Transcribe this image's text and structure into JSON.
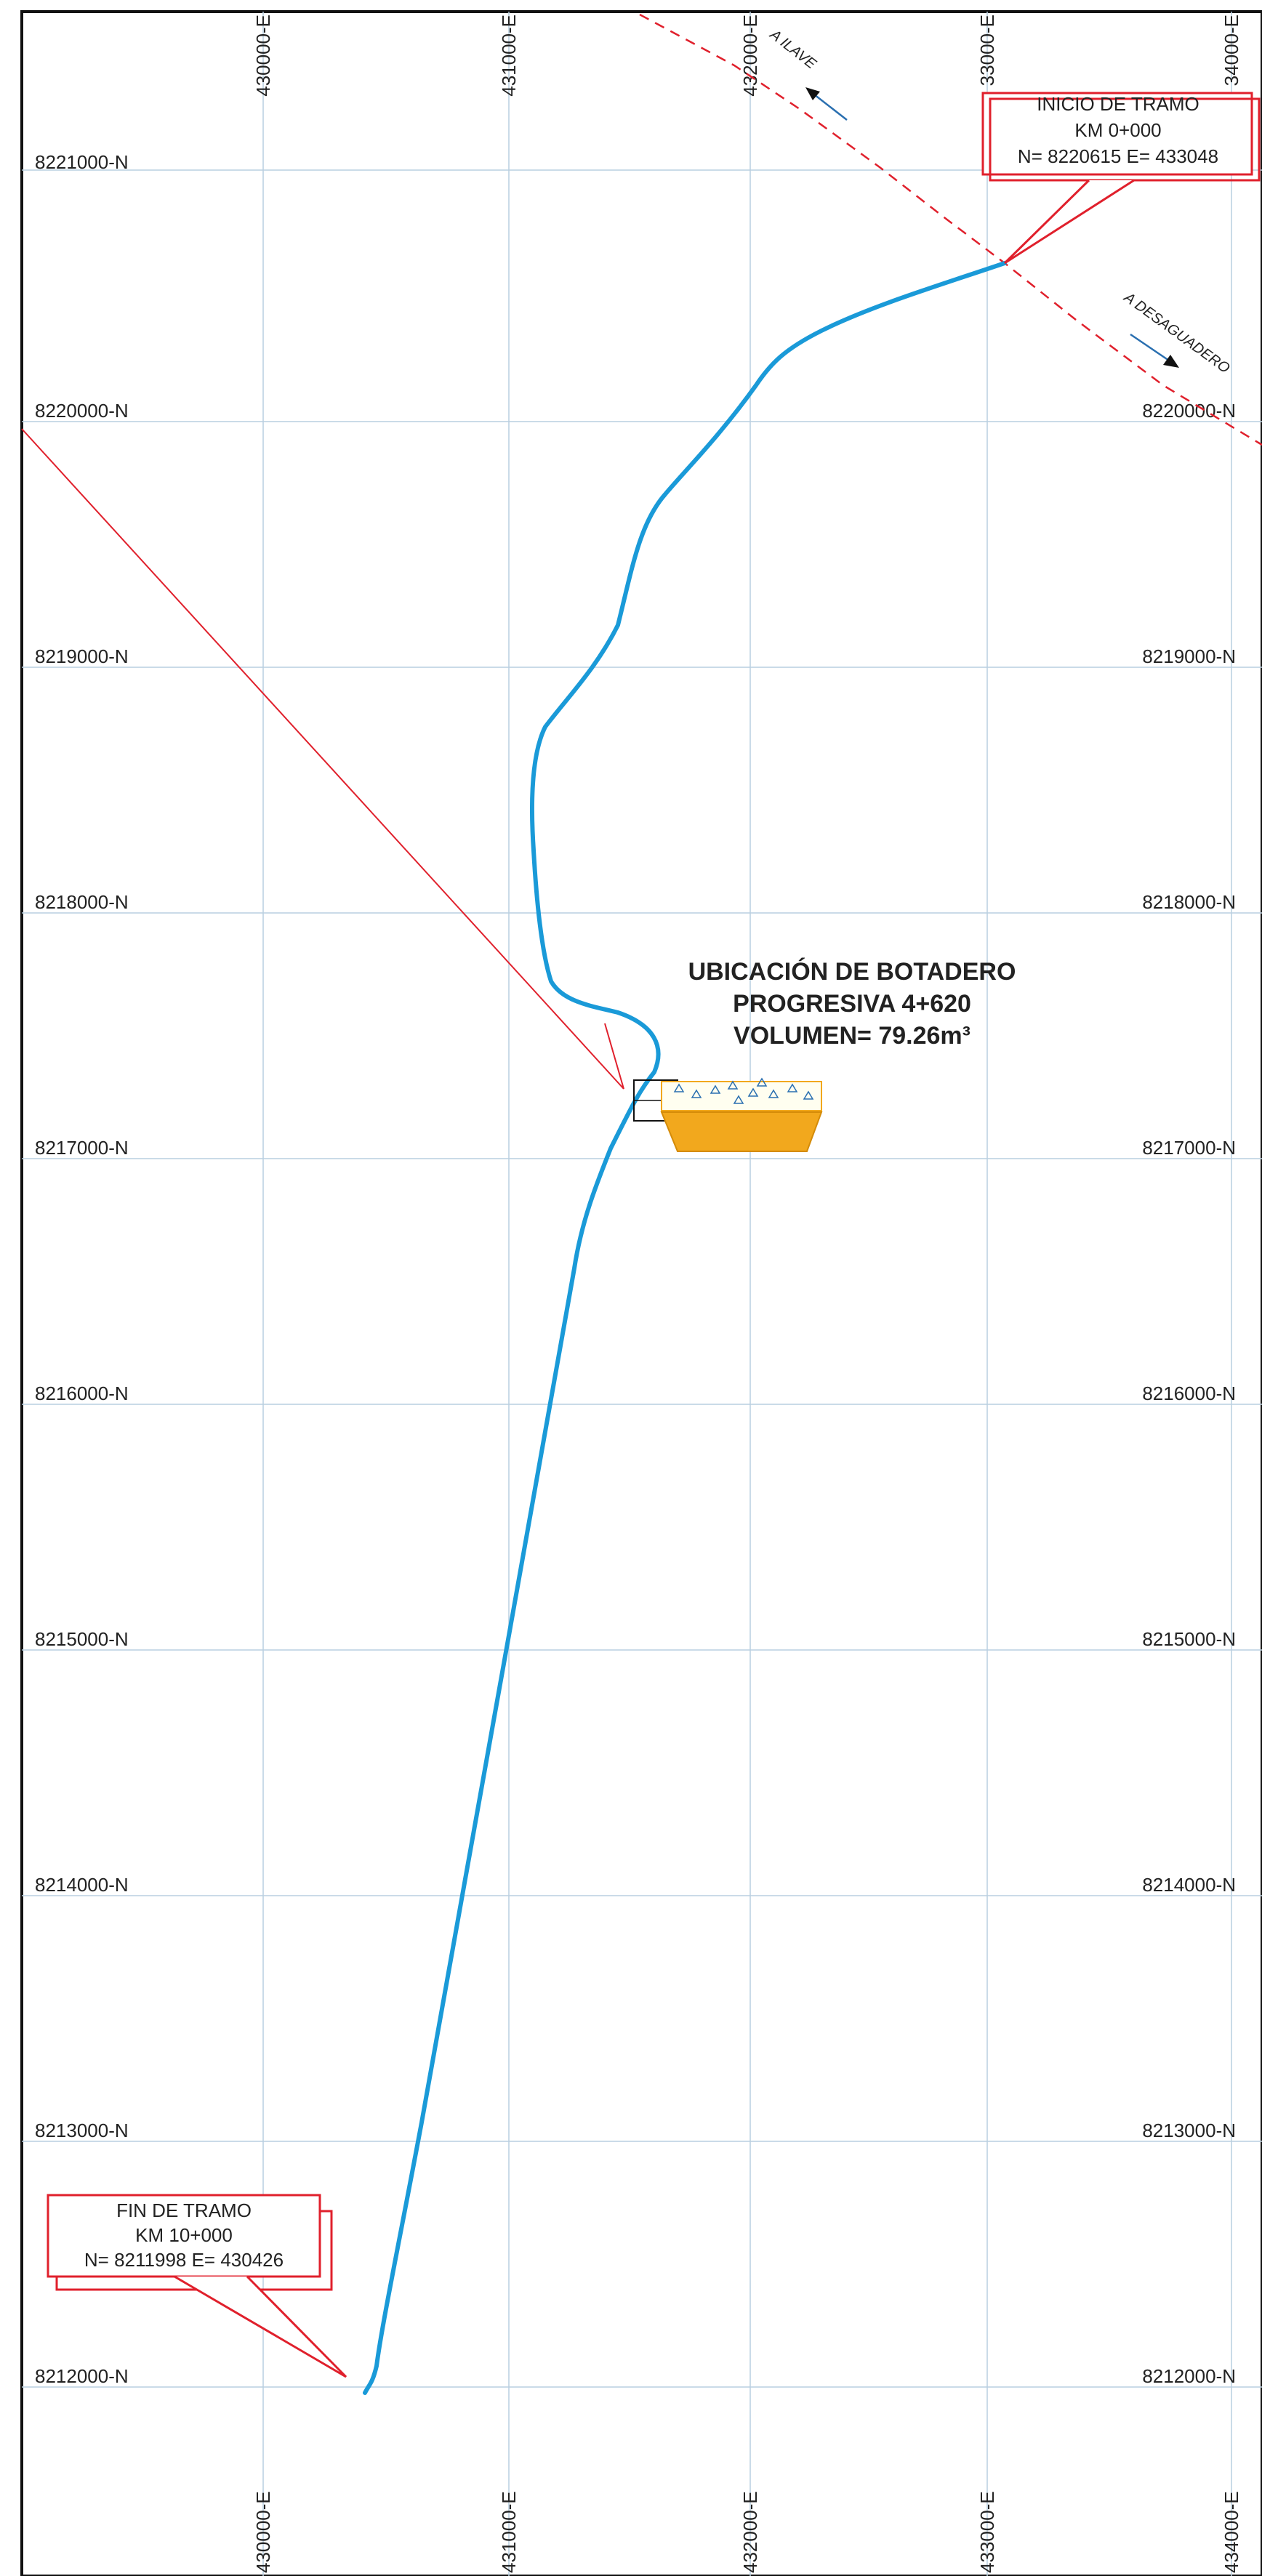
{
  "grid": {
    "northings": [
      "8221000-N",
      "8220000-N",
      "8219000-N",
      "8218000-N",
      "8217000-N",
      "8216000-N",
      "8215000-N",
      "8214000-N",
      "8213000-N",
      "8212000-N"
    ],
    "northings_right": [
      "8220000-N",
      "8219000-N",
      "8218000-N",
      "8217000-N",
      "8216000-N",
      "8215000-N",
      "8214000-N",
      "8213000-N",
      "8212000-N"
    ],
    "eastings_top": [
      "430000-E",
      "431000-E",
      "432000-E",
      "33000-E",
      "34000-E"
    ],
    "eastings_bottom": [
      "430000-E",
      "431000-E",
      "432000-E",
      "433000-E",
      "434000-E"
    ]
  },
  "roads": {
    "to_ilave": "A ILAVE",
    "to_desaguadero": "A DESAGUADERO"
  },
  "start_box": {
    "title": "INICIO DE TRAMO",
    "km": "KM 0+000",
    "coords": "N= 8220615   E=  433048"
  },
  "end_box": {
    "title": "FIN DE TRAMO",
    "km": "KM 10+000",
    "coords": "N= 8211998   E=  430426"
  },
  "dump_site": {
    "line1": "UBICACIÓN DE BOTADERO",
    "line2": "PROGRESIVA 4+620",
    "line3": "VOLUMEN= 79.26m³"
  },
  "colors": {
    "route": "#1a9ad8",
    "callout": "#e0202c",
    "highway": "#e0202c",
    "grid": "#b9cfe0",
    "dump_fill": "#f2a81d",
    "arrow_blue": "#2a6fb0"
  }
}
